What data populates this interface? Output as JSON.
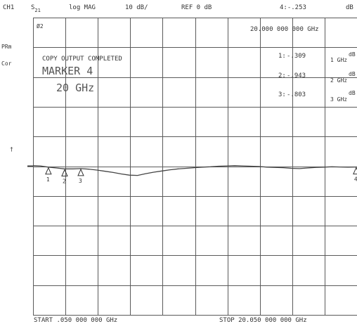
{
  "header": {
    "channel": "CH1",
    "param_main": "S",
    "param_sub": "21",
    "format": "log MAG",
    "scale": "10 dB/",
    "ref": "REF 0 dB",
    "active_marker_readout": "4:-.253",
    "active_marker_unit": "dB"
  },
  "side_annotations": {
    "prm": "PRm",
    "cor": "Cor",
    "reference_marker": "†"
  },
  "top_left_marker": "Ø2",
  "marker_frequency_readout": "20.000 000 000 GHz",
  "message": {
    "line1": "COPY OUTPUT COMPLETED",
    "line2": "MARKER 4",
    "line3": "20 GHz"
  },
  "marker_list": [
    {
      "label": "1:",
      "value": "-.309",
      "unit": "dB",
      "freq": "1 GHz"
    },
    {
      "label": "2:",
      "value": "-.943",
      "unit": "dB",
      "freq": "2 GHz"
    },
    {
      "label": "3:",
      "value": "-.803",
      "unit": "dB",
      "freq": "3 GHz"
    }
  ],
  "footer": {
    "start": "START  .050 000 000 GHz",
    "stop": "STOP 20.050 000 000 GHz"
  },
  "chart_data": {
    "type": "line",
    "x_unit": "GHz",
    "y_unit": "dB",
    "xlim": [
      0.05,
      20.05
    ],
    "ylim": [
      -50,
      50
    ],
    "x_divisions": 10,
    "y_divisions": 10,
    "grid": true,
    "x": [
      0.05,
      0.5,
      1,
      1.5,
      2,
      2.5,
      3,
      3.5,
      4,
      4.5,
      5,
      5.5,
      6,
      6.5,
      7,
      7.5,
      8,
      8.5,
      9,
      9.5,
      10,
      10.5,
      11,
      11.5,
      12,
      12.5,
      13,
      13.5,
      14,
      14.5,
      15,
      15.5,
      16,
      16.5,
      17,
      17.5,
      18,
      18.5,
      19,
      19.5,
      20.05
    ],
    "series": [
      {
        "values": [
          0.2,
          0.1,
          -0.3,
          -0.6,
          -0.9,
          -0.9,
          -0.8,
          -1.0,
          -1.3,
          -1.7,
          -2.1,
          -2.6,
          -3.0,
          -3.1,
          -2.5,
          -2.0,
          -1.6,
          -1.2,
          -0.9,
          -0.7,
          -0.5,
          -0.3,
          -0.2,
          0.0,
          0.1,
          0.2,
          0.1,
          0.0,
          -0.1,
          -0.3,
          -0.4,
          -0.5,
          -0.7,
          -0.8,
          -0.6,
          -0.4,
          -0.3,
          -0.2,
          -0.25,
          -0.3,
          -0.25
        ],
        "color": "#444444"
      }
    ],
    "markers": [
      {
        "label": "1",
        "x": 1,
        "y": -0.309
      },
      {
        "label": "2",
        "x": 2,
        "y": -0.943
      },
      {
        "label": "3",
        "x": 3,
        "y": -0.803
      },
      {
        "label": "4",
        "x": 20,
        "y": -0.253
      }
    ]
  }
}
